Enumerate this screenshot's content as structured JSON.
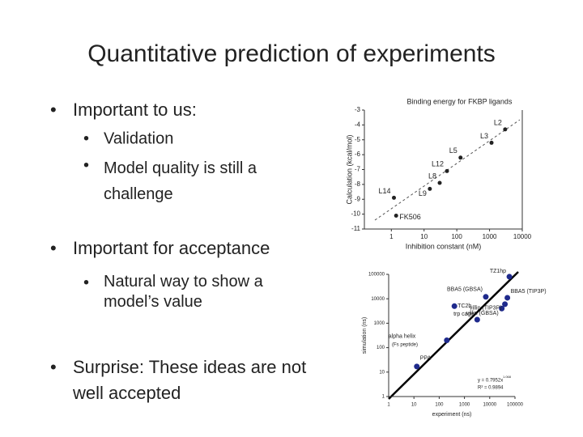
{
  "slide": {
    "title": "Quantitative prediction of experiments",
    "bullets": [
      {
        "text": "Important to us:",
        "sub": [
          "Validation",
          "Model quality is still a challenge"
        ]
      },
      {
        "text": "Important for acceptance",
        "sub": [
          "Natural way to show a model’s value"
        ]
      },
      {
        "text": "Surprise:  These ideas are not well accepted",
        "sub": []
      }
    ]
  },
  "chart_data": [
    {
      "type": "scatter",
      "title": "Binding energy for FKBP ligands",
      "x_label": "Inhibition constant (nM)",
      "y_label": "Calculation (kcal/mol)",
      "x_log": true,
      "xlim": [
        0.15,
        10000
      ],
      "xticks": [
        1,
        10,
        100,
        1000,
        10000
      ],
      "ylim": [
        -11,
        -3
      ],
      "yticks": [
        -3,
        -4,
        -5,
        -6,
        -7,
        -8,
        -9,
        -10,
        -11
      ],
      "color": "#222222",
      "point_labels": [
        "L2",
        "L3",
        "L5",
        "L12",
        "L8",
        "L9",
        "L14",
        "FK506"
      ],
      "x": [
        3000,
        1150,
        130,
        50,
        30,
        15,
        1.2,
        1.4
      ],
      "values": [
        -4.3,
        -5.2,
        -6.2,
        -7.1,
        -7.9,
        -8.3,
        -8.9,
        -10.1
      ]
    },
    {
      "type": "scatter",
      "x_label": "experiment (ns)",
      "y_label": "simulation (ns)",
      "x_log": true,
      "y_log": true,
      "xlim": [
        1,
        100000
      ],
      "xticks": [
        1,
        10,
        100,
        1000,
        10000,
        100000
      ],
      "ylim": [
        1,
        100000
      ],
      "yticks": [
        1,
        10,
        100,
        1000,
        10000,
        100000
      ],
      "color": "#1f2a8c",
      "point_labels": [
        "PPA",
        "alpha helix",
        "trp cage",
        "villin (GBSA)",
        "BBA5 (GBSA)",
        "BBA5 (TIP3P)",
        "villin (TIP3P)",
        "TC2b",
        "TZ1hp"
      ],
      "x": [
        13,
        200,
        3200,
        30000,
        7000,
        50000,
        40000,
        400,
        60000
      ],
      "values": [
        17,
        200,
        1400,
        4000,
        12000,
        11000,
        6000,
        5000,
        80000
      ],
      "annotations": [
        "(Fs peptide)",
        "y = 0.7952x",
        "1.068",
        "R² = 0.9894"
      ]
    }
  ]
}
